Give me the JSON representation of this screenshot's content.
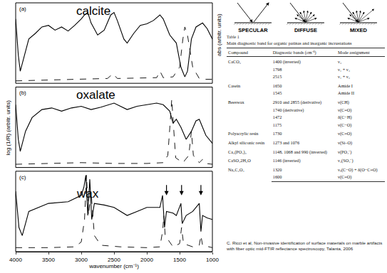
{
  "chart_data": {
    "type": "line",
    "x_label": "wavenumber (cm⁻¹)",
    "y_label": "log (1/R) (arbitr. units)",
    "y2_label": "abs (arbitr. units)",
    "xlim": [
      4000,
      1000
    ],
    "xticks": [
      4000,
      3500,
      3000,
      2500,
      2000,
      1500,
      1000
    ],
    "tick_labels": "x",
    "grid": false,
    "panels": [
      {
        "label": "(a)",
        "title": "calcite",
        "ylim": [
          0,
          1
        ],
        "y2lim": [
          0,
          1
        ],
        "series": [
          {
            "color": "#000000",
            "line_style": "solid",
            "x": [
              4000,
              3960,
              3930,
              3880,
              3800,
              3700,
              3600,
              3500,
              3400,
              3300,
              3200,
              3100,
              3000,
              2950,
              2900,
              2850,
              2750,
              2650,
              2550,
              2500,
              2450,
              2350,
              2300,
              2200,
              2100,
              2000,
              1900,
              1800,
              1750,
              1650,
              1550,
              1480,
              1420,
              1380,
              1320,
              1250,
              1150,
              1080,
              1000
            ],
            "values": [
              0.8,
              0.35,
              0.15,
              0.3,
              0.55,
              0.62,
              0.7,
              0.72,
              0.66,
              0.7,
              0.65,
              0.72,
              0.8,
              0.85,
              0.88,
              0.75,
              0.6,
              0.66,
              0.85,
              0.88,
              0.78,
              0.55,
              0.5,
              0.62,
              0.72,
              0.74,
              0.78,
              0.85,
              0.8,
              0.6,
              0.5,
              0.2,
              0.08,
              0.15,
              0.55,
              0.7,
              0.75,
              0.68,
              0.55
            ]
          },
          {
            "color": "#000000",
            "line_style": "dashed",
            "axis": "y2",
            "x": [
              4000,
              3500,
              3000,
              2600,
              2515,
              2450,
              1850,
              1798,
              1750,
              1600,
              1500,
              1450,
              1420,
              1380,
              1300,
              1200,
              1100,
              1000
            ],
            "values": [
              0.03,
              0.04,
              0.05,
              0.06,
              0.12,
              0.06,
              0.07,
              0.15,
              0.07,
              0.08,
              0.2,
              0.55,
              0.7,
              0.6,
              0.2,
              0.06,
              0.05,
              0.05
            ]
          }
        ]
      },
      {
        "label": "(b)",
        "title": "oxalate",
        "ylim": [
          0,
          1
        ],
        "y2lim": [
          0,
          1
        ],
        "series": [
          {
            "color": "#000000",
            "line_style": "solid",
            "x": [
              4000,
              3960,
              3930,
              3850,
              3750,
              3600,
              3450,
              3300,
              3150,
              3000,
              2850,
              2700,
              2500,
              2300,
              2150,
              2000,
              1850,
              1750,
              1650,
              1600,
              1550,
              1480,
              1400,
              1320,
              1250,
              1200,
              1150,
              1100,
              1000
            ],
            "values": [
              0.78,
              0.35,
              0.2,
              0.45,
              0.62,
              0.72,
              0.74,
              0.7,
              0.74,
              0.76,
              0.72,
              0.75,
              0.8,
              0.72,
              0.76,
              0.78,
              0.8,
              0.78,
              0.7,
              0.55,
              0.6,
              0.5,
              0.35,
              0.45,
              0.58,
              0.6,
              0.5,
              0.4,
              0.3
            ]
          },
          {
            "color": "#000000",
            "line_style": "dashed",
            "axis": "y2",
            "x": [
              4000,
              3500,
              3000,
              2500,
              2000,
              1750,
              1680,
              1640,
              1620,
              1600,
              1560,
              1450,
              1360,
              1320,
              1290,
              1200,
              1150,
              1100,
              1000
            ],
            "values": [
              0.04,
              0.05,
              0.06,
              0.05,
              0.05,
              0.06,
              0.15,
              0.6,
              0.85,
              0.6,
              0.12,
              0.06,
              0.15,
              0.45,
              0.15,
              0.06,
              0.1,
              0.05,
              0.04
            ]
          }
        ]
      },
      {
        "label": "(c)",
        "title": "wax",
        "ylim": [
          0,
          1
        ],
        "y2lim": [
          0,
          1
        ],
        "arrows": [
          1700,
          1470,
          1175
        ],
        "series": [
          {
            "color": "#000000",
            "line_style": "solid",
            "x": [
              4000,
              3950,
              3900,
              3800,
              3500,
              3200,
              3000,
              2960,
              2930,
              2900,
              2870,
              2840,
              2800,
              2650,
              2500,
              2300,
              2150,
              2000,
              1800,
              1760,
              1730,
              1700,
              1600,
              1550,
              1480,
              1460,
              1400,
              1300,
              1200,
              1175,
              1150,
              1080,
              1000
            ],
            "values": [
              0.75,
              0.3,
              0.2,
              0.5,
              0.6,
              0.62,
              0.7,
              0.8,
              0.95,
              0.45,
              0.9,
              0.4,
              0.6,
              0.58,
              0.55,
              0.45,
              0.5,
              0.55,
              0.55,
              0.7,
              0.3,
              0.5,
              0.48,
              0.45,
              0.6,
              0.35,
              0.45,
              0.5,
              0.6,
              0.25,
              0.45,
              0.42,
              0.4
            ]
          },
          {
            "color": "#000000",
            "line_style": "dashed",
            "axis": "y2",
            "x": [
              4000,
              3500,
              3100,
              3000,
              2950,
              2920,
              2890,
              2850,
              2800,
              2700,
              2400,
              2000,
              1800,
              1760,
              1740,
              1720,
              1600,
              1500,
              1470,
              1440,
              1300,
              1200,
              1175,
              1150,
              1000
            ],
            "values": [
              0.05,
              0.05,
              0.06,
              0.12,
              0.4,
              0.95,
              0.45,
              0.75,
              0.2,
              0.08,
              0.06,
              0.05,
              0.06,
              0.25,
              0.45,
              0.2,
              0.06,
              0.1,
              0.3,
              0.1,
              0.06,
              0.08,
              0.2,
              0.08,
              0.05
            ]
          }
        ]
      }
    ]
  },
  "diagram": {
    "labels": [
      "SPECULAR",
      "DIFFUSE",
      "MIXED"
    ]
  },
  "table": {
    "title": "Table 1",
    "caption": "Main diagnostic band for organic patinas and inorganic incrustations",
    "header": [
      "Compound",
      "Diagnostic bands (cm⁻¹)",
      "Mode assignment"
    ],
    "rows": [
      {
        "compound": "CaCO₃",
        "entries": [
          [
            "1400 (inverted)",
            "ν₃"
          ],
          [
            "1798",
            "ν₁ + ν₄"
          ],
          [
            "2515",
            "ν₁ + ν₃"
          ]
        ]
      },
      {
        "compound": "Casein",
        "entries": [
          [
            "1650",
            "Amide I"
          ],
          [
            "1545",
            "Amide II"
          ]
        ]
      },
      {
        "compound": "Beeswax",
        "entries": [
          [
            "2910 and 2855 (derivative)",
            "ν(CH)"
          ],
          [
            "1740 (derivative)",
            "ν(C=O)"
          ],
          [
            "1472",
            "δ(C−H)"
          ],
          [
            "1175",
            "ν(C−O)"
          ]
        ]
      },
      {
        "compound": "Polyacrylic resin",
        "entries": [
          [
            "1730",
            "ν(C=O)"
          ]
        ]
      },
      {
        "compound": "Alkyl siliconic resin",
        "entries": [
          [
            "1273 and 1076",
            "ν(Si–O)"
          ]
        ]
      },
      {
        "compound": "Ca₃(PO₄)₂",
        "entries": [
          [
            "1148, 1068 and 990 (inverted)",
            "ν(PO₄⁻)"
          ]
        ]
      },
      {
        "compound": "CaSO₄2H₂O",
        "entries": [
          [
            "1146 (inverted)",
            "ν₃(SO₄⁻)"
          ]
        ]
      },
      {
        "compound": "Na₂C₂O₄",
        "entries": [
          [
            "1320",
            "νₛ(C−O) + δ(O−C=O)"
          ],
          [
            "1600",
            "ν(C=O)"
          ]
        ]
      }
    ]
  },
  "citation": "C. Ricci et al, Non-invasive identification of surface materials on marble artifacts with fiber optic mid-FTIR reflectance spectroscopy, Talanta, 2006"
}
